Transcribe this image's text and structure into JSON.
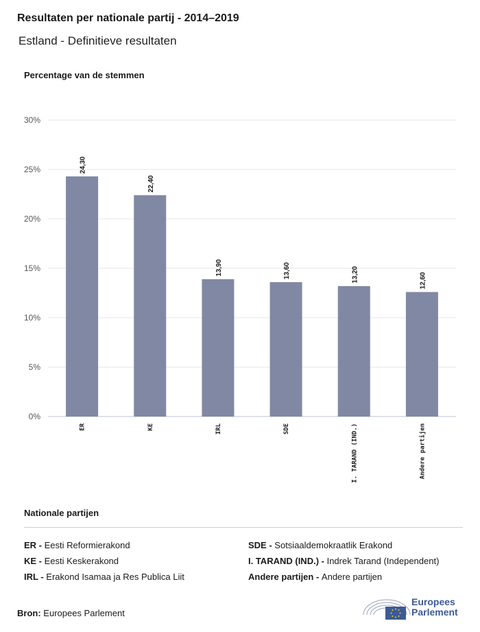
{
  "header": {
    "title": "Resultaten per nationale partij - 2014–2019",
    "subtitle": "Estland - Definitieve resultaten"
  },
  "colors": {
    "bar": "#8088a4",
    "grid": "#e6e6e6",
    "axis": "#bfc4d4",
    "text": "#1a1a1a",
    "brand": "#3c5a96"
  },
  "chart_data": {
    "type": "bar",
    "ylabel": "Percentage van de stemmen",
    "categories": [
      "ER",
      "KE",
      "IRL",
      "SDE",
      "I. TARAND (IND.)",
      "Andere partijen"
    ],
    "values": [
      24.3,
      22.4,
      13.9,
      13.6,
      13.2,
      12.6
    ],
    "value_labels": [
      "24,30",
      "22,40",
      "13,90",
      "13,60",
      "13,20",
      "12,60"
    ],
    "ylim": [
      0,
      30
    ],
    "yticks": [
      0,
      5,
      10,
      15,
      20,
      25,
      30
    ],
    "ytick_labels": [
      "0%",
      "5%",
      "10%",
      "15%",
      "20%",
      "25%",
      "30%"
    ],
    "grid": true
  },
  "legend": {
    "title": "Nationale partijen",
    "items": [
      {
        "code": "ER",
        "name": "Eesti Reformierakond"
      },
      {
        "code": "KE",
        "name": "Eesti Keskerakond"
      },
      {
        "code": "IRL",
        "name": "Erakond Isamaa ja Res Publica Liit"
      },
      {
        "code": "SDE",
        "name": "Sotsiaaldemokraatlik Erakond"
      },
      {
        "code": "I. TARAND (IND.)",
        "name": "Indrek Tarand (Independent)"
      },
      {
        "code": "Andere partijen",
        "name": "Andere partijen"
      }
    ]
  },
  "footer": {
    "source_label": "Bron:",
    "source_value": "Europees Parlement",
    "logo_line1": "Europees",
    "logo_line2": "Parlement"
  }
}
